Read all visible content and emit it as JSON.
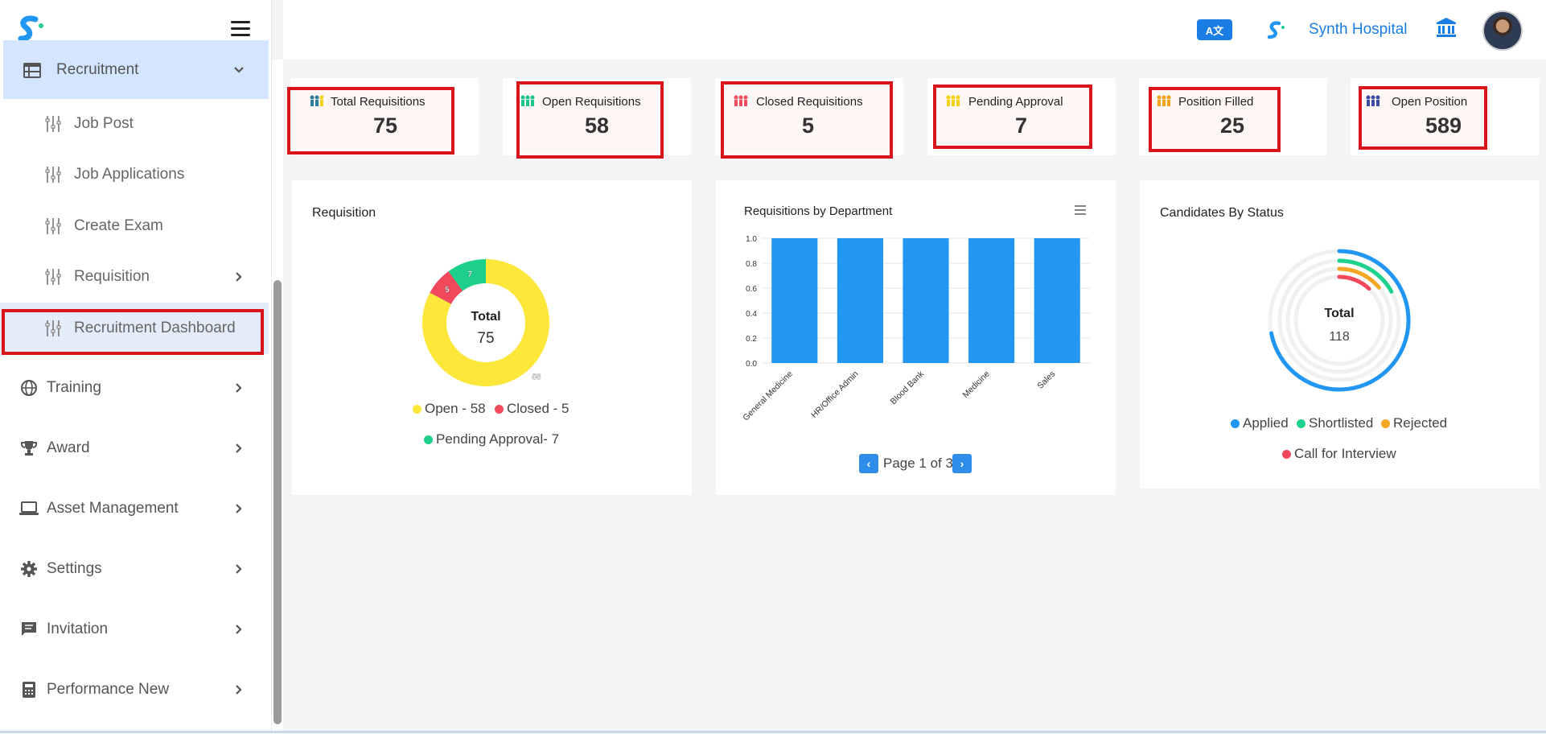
{
  "sidebar": {
    "recruitment": "Recruitment",
    "sub_items": [
      "Job Post",
      "Job Applications",
      "Create Exam",
      "Requisition",
      "Recruitment Dashboard"
    ],
    "items": [
      "Training",
      "Award",
      "Asset Management",
      "Settings",
      "Invitation",
      "Performance New"
    ]
  },
  "topbar": {
    "translate_label": "A文",
    "hospital_name": "Synth Hospital"
  },
  "stats": [
    {
      "label": "Total Requisitions",
      "value": "75",
      "color": "#2e7d9a"
    },
    {
      "label": "Open Requisitions",
      "value": "58",
      "color": "#1ec28b"
    },
    {
      "label": "Closed Requisitions",
      "value": "5",
      "color": "#f24c5e"
    },
    {
      "label": "Pending Approval",
      "value": "7",
      "color": "#f5d20f"
    },
    {
      "label": "Position Filled",
      "value": "25",
      "color": "#f5a21a"
    },
    {
      "label": "Open Position",
      "value": "589",
      "color": "#3d4ba8"
    }
  ],
  "requisition_panel": {
    "title": "Requisition",
    "center_label": "Total",
    "center_value": "75",
    "slice_labels": [
      "58",
      "5",
      "7"
    ],
    "legend": [
      "Open - 58",
      "Closed - 5",
      "Pending Approval- 7"
    ],
    "colors": [
      "#fde73a",
      "#f2485b",
      "#1dcf8a"
    ]
  },
  "department_panel": {
    "title": "Requisitions by Department",
    "pagination": "Page 1 of 3",
    "prev_icon": "chevron-left-icon",
    "next_icon": "chevron-right-icon"
  },
  "chart_data": {
    "type": "bar",
    "title": "Requisitions by Department",
    "categories": [
      "General Medicine",
      "HR/Office Admin",
      "Blood Bank",
      "Medicine",
      "Sales"
    ],
    "values": [
      1.0,
      1.0,
      1.0,
      1.0,
      1.0
    ],
    "yticks": [
      "0.0",
      "0.2",
      "0.4",
      "0.6",
      "0.8",
      "1.0"
    ],
    "ylim": [
      0,
      1.0
    ],
    "color": "#2196f3"
  },
  "candidates_panel": {
    "title": "Candidates By Status",
    "center_label": "Total",
    "center_value": "118",
    "legend": [
      "Applied",
      "Shortlisted",
      "Rejected",
      "Call for Interview"
    ],
    "colors": [
      "#2196f3",
      "#1dd38c",
      "#f5a623",
      "#f2485b"
    ],
    "fractions": [
      0.72,
      0.17,
      0.14,
      0.12
    ]
  }
}
